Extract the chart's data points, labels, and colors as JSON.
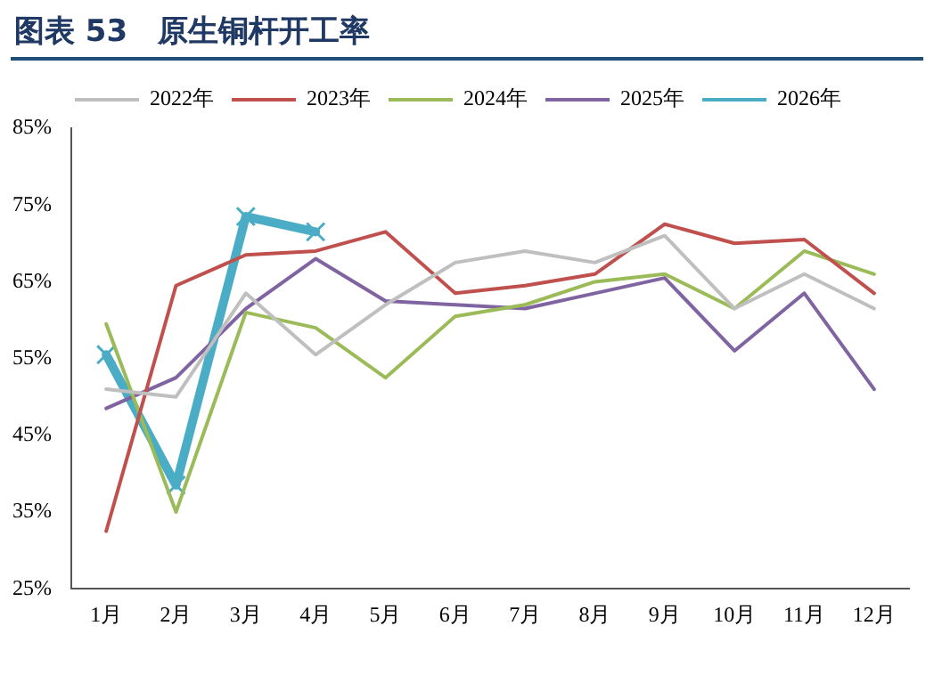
{
  "chart_data": {
    "type": "line",
    "title": "图表 53　原生铜杆开工率",
    "categories": [
      "1月",
      "2月",
      "3月",
      "4月",
      "5月",
      "6月",
      "7月",
      "8月",
      "9月",
      "10月",
      "11月",
      "12月"
    ],
    "series": [
      {
        "name": "2022年",
        "color": "#bfbfbf",
        "values": [
          51,
          50,
          63.5,
          55.5,
          62,
          67.5,
          69,
          67.5,
          71,
          61.5,
          66,
          61.5
        ]
      },
      {
        "name": "2023年",
        "color": "#c0504d",
        "values": [
          32.5,
          64.5,
          68.5,
          69,
          71.5,
          63.5,
          64.5,
          66,
          72.5,
          70,
          70.5,
          63.5
        ]
      },
      {
        "name": "2024年",
        "color": "#9bbb59",
        "values": [
          59.5,
          35,
          61,
          59,
          52.5,
          60.5,
          62,
          65,
          66,
          61.5,
          69,
          66
        ]
      },
      {
        "name": "2025年",
        "color": "#8064a2",
        "values": [
          48.5,
          52.5,
          61.5,
          68,
          62.5,
          62,
          61.5,
          63.5,
          65.5,
          56,
          63.5,
          51
        ]
      },
      {
        "name": "2026年",
        "color": "#4bacc6",
        "values": [
          55.5,
          38.5,
          73.5,
          71.5,
          null,
          null,
          null,
          null,
          null,
          null,
          null,
          null
        ],
        "marker": "cross"
      }
    ],
    "ylim": [
      25,
      85
    ],
    "yticks": [
      {
        "value": 25,
        "label": "25%"
      },
      {
        "value": 35,
        "label": "35%"
      },
      {
        "value": 45,
        "label": "45%"
      },
      {
        "value": 55,
        "label": "55%"
      },
      {
        "value": 65,
        "label": "65%"
      },
      {
        "value": 75,
        "label": "75%"
      },
      {
        "value": 85,
        "label": "85%"
      }
    ],
    "grid": false,
    "legend": "top",
    "marker": "none",
    "line_style": "solid"
  }
}
